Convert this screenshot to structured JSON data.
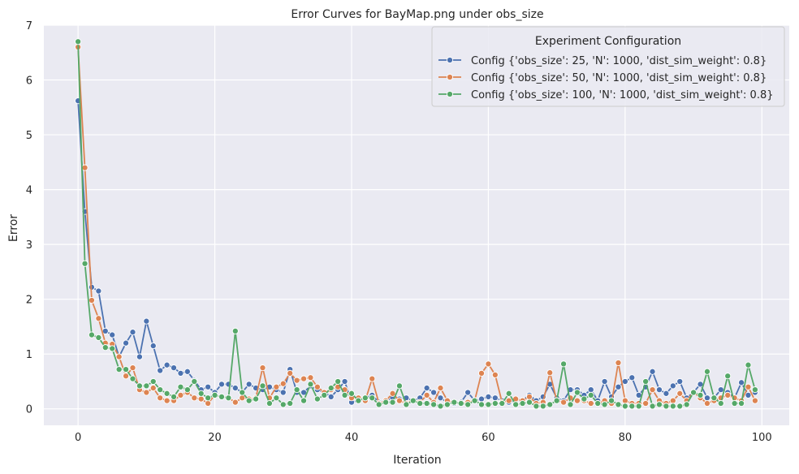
{
  "chart_data": {
    "type": "line",
    "title": "Error Curves for BayMap.png under obs_size",
    "xlabel": "Iteration",
    "ylabel": "Error",
    "xlim": [
      -5,
      104
    ],
    "ylim": [
      -0.3,
      7.0
    ],
    "xticks": [
      0,
      20,
      40,
      60,
      80,
      100
    ],
    "yticks": [
      0,
      1,
      2,
      3,
      4,
      5,
      6,
      7
    ],
    "grid": true,
    "legend": {
      "title": "Experiment Configuration",
      "placement": "top-right"
    },
    "x": [
      0,
      1,
      2,
      3,
      4,
      5,
      6,
      7,
      8,
      9,
      10,
      11,
      12,
      13,
      14,
      15,
      16,
      17,
      18,
      19,
      20,
      21,
      22,
      23,
      24,
      25,
      26,
      27,
      28,
      29,
      30,
      31,
      32,
      33,
      34,
      35,
      36,
      37,
      38,
      39,
      40,
      41,
      42,
      43,
      44,
      45,
      46,
      47,
      48,
      49,
      50,
      51,
      52,
      53,
      54,
      55,
      56,
      57,
      58,
      59,
      60,
      61,
      62,
      63,
      64,
      65,
      66,
      67,
      68,
      69,
      70,
      71,
      72,
      73,
      74,
      75,
      76,
      77,
      78,
      79,
      80,
      81,
      82,
      83,
      84,
      85,
      86,
      87,
      88,
      89,
      90,
      91,
      92,
      93,
      94,
      95,
      96,
      97,
      98,
      99
    ],
    "series": [
      {
        "name": "Config {'obs_size': 25, 'N': 1000, 'dist_sim_weight': 0.8}",
        "color": "#4c72b0",
        "values": [
          5.62,
          3.6,
          2.22,
          2.15,
          1.42,
          1.35,
          0.95,
          1.2,
          1.4,
          0.95,
          1.6,
          1.15,
          0.7,
          0.8,
          0.75,
          0.65,
          0.68,
          0.52,
          0.35,
          0.4,
          0.3,
          0.45,
          0.45,
          0.38,
          0.3,
          0.45,
          0.38,
          0.35,
          0.4,
          0.35,
          0.3,
          0.72,
          0.3,
          0.3,
          0.42,
          0.35,
          0.3,
          0.22,
          0.35,
          0.5,
          0.12,
          0.15,
          0.2,
          0.25,
          0.12,
          0.15,
          0.2,
          0.18,
          0.2,
          0.15,
          0.2,
          0.38,
          0.3,
          0.2,
          0.12,
          0.1,
          0.12,
          0.3,
          0.15,
          0.18,
          0.22,
          0.2,
          0.15,
          0.12,
          0.15,
          0.15,
          0.25,
          0.15,
          0.22,
          0.45,
          0.2,
          0.15,
          0.35,
          0.35,
          0.25,
          0.35,
          0.15,
          0.5,
          0.22,
          0.4,
          0.5,
          0.57,
          0.25,
          0.4,
          0.68,
          0.35,
          0.28,
          0.42,
          0.5,
          0.2,
          0.3,
          0.45,
          0.2,
          0.2,
          0.35,
          0.3,
          0.2,
          0.48,
          0.25,
          0.3
        ]
      },
      {
        "name": "Config {'obs_size': 50, 'N': 1000, 'dist_sim_weight': 0.8}",
        "color": "#dd8452",
        "values": [
          6.6,
          4.4,
          1.98,
          1.65,
          1.2,
          1.18,
          0.95,
          0.6,
          0.75,
          0.35,
          0.3,
          0.38,
          0.2,
          0.15,
          0.15,
          0.25,
          0.3,
          0.2,
          0.18,
          0.1,
          0.25,
          0.22,
          0.2,
          0.12,
          0.2,
          0.18,
          0.2,
          0.75,
          0.2,
          0.4,
          0.46,
          0.65,
          0.52,
          0.55,
          0.57,
          0.4,
          0.3,
          0.35,
          0.4,
          0.35,
          0.2,
          0.2,
          0.15,
          0.55,
          0.1,
          0.15,
          0.28,
          0.15,
          0.1,
          0.15,
          0.12,
          0.25,
          0.12,
          0.38,
          0.15,
          0.12,
          0.1,
          0.12,
          0.15,
          0.65,
          0.82,
          0.62,
          0.12,
          0.15,
          0.18,
          0.15,
          0.22,
          0.1,
          0.12,
          0.66,
          0.15,
          0.12,
          0.2,
          0.15,
          0.15,
          0.1,
          0.1,
          0.15,
          0.1,
          0.84,
          0.15,
          0.1,
          0.1,
          0.1,
          0.35,
          0.15,
          0.1,
          0.15,
          0.28,
          0.15,
          0.3,
          0.2,
          0.1,
          0.15,
          0.2,
          0.25,
          0.2,
          0.15,
          0.4,
          0.15
        ]
      },
      {
        "name": "Config {'obs_size': 100, 'N': 1000, 'dist_sim_weight': 0.8}",
        "color": "#55a868",
        "values": [
          6.7,
          2.65,
          1.35,
          1.3,
          1.12,
          1.1,
          0.72,
          0.72,
          0.55,
          0.42,
          0.42,
          0.5,
          0.35,
          0.28,
          0.22,
          0.4,
          0.35,
          0.5,
          0.28,
          0.2,
          0.25,
          0.22,
          0.2,
          1.42,
          0.3,
          0.15,
          0.18,
          0.42,
          0.1,
          0.2,
          0.08,
          0.1,
          0.35,
          0.15,
          0.45,
          0.18,
          0.25,
          0.38,
          0.5,
          0.25,
          0.28,
          0.15,
          0.2,
          0.2,
          0.08,
          0.12,
          0.12,
          0.42,
          0.08,
          0.15,
          0.1,
          0.1,
          0.08,
          0.05,
          0.08,
          0.12,
          0.1,
          0.08,
          0.15,
          0.08,
          0.08,
          0.1,
          0.1,
          0.28,
          0.08,
          0.1,
          0.12,
          0.05,
          0.05,
          0.08,
          0.15,
          0.82,
          0.08,
          0.3,
          0.18,
          0.25,
          0.1,
          0.08,
          0.15,
          0.08,
          0.05,
          0.05,
          0.05,
          0.5,
          0.05,
          0.08,
          0.05,
          0.05,
          0.05,
          0.08,
          0.3,
          0.25,
          0.68,
          0.2,
          0.1,
          0.6,
          0.1,
          0.1,
          0.8,
          0.35
        ]
      }
    ]
  }
}
